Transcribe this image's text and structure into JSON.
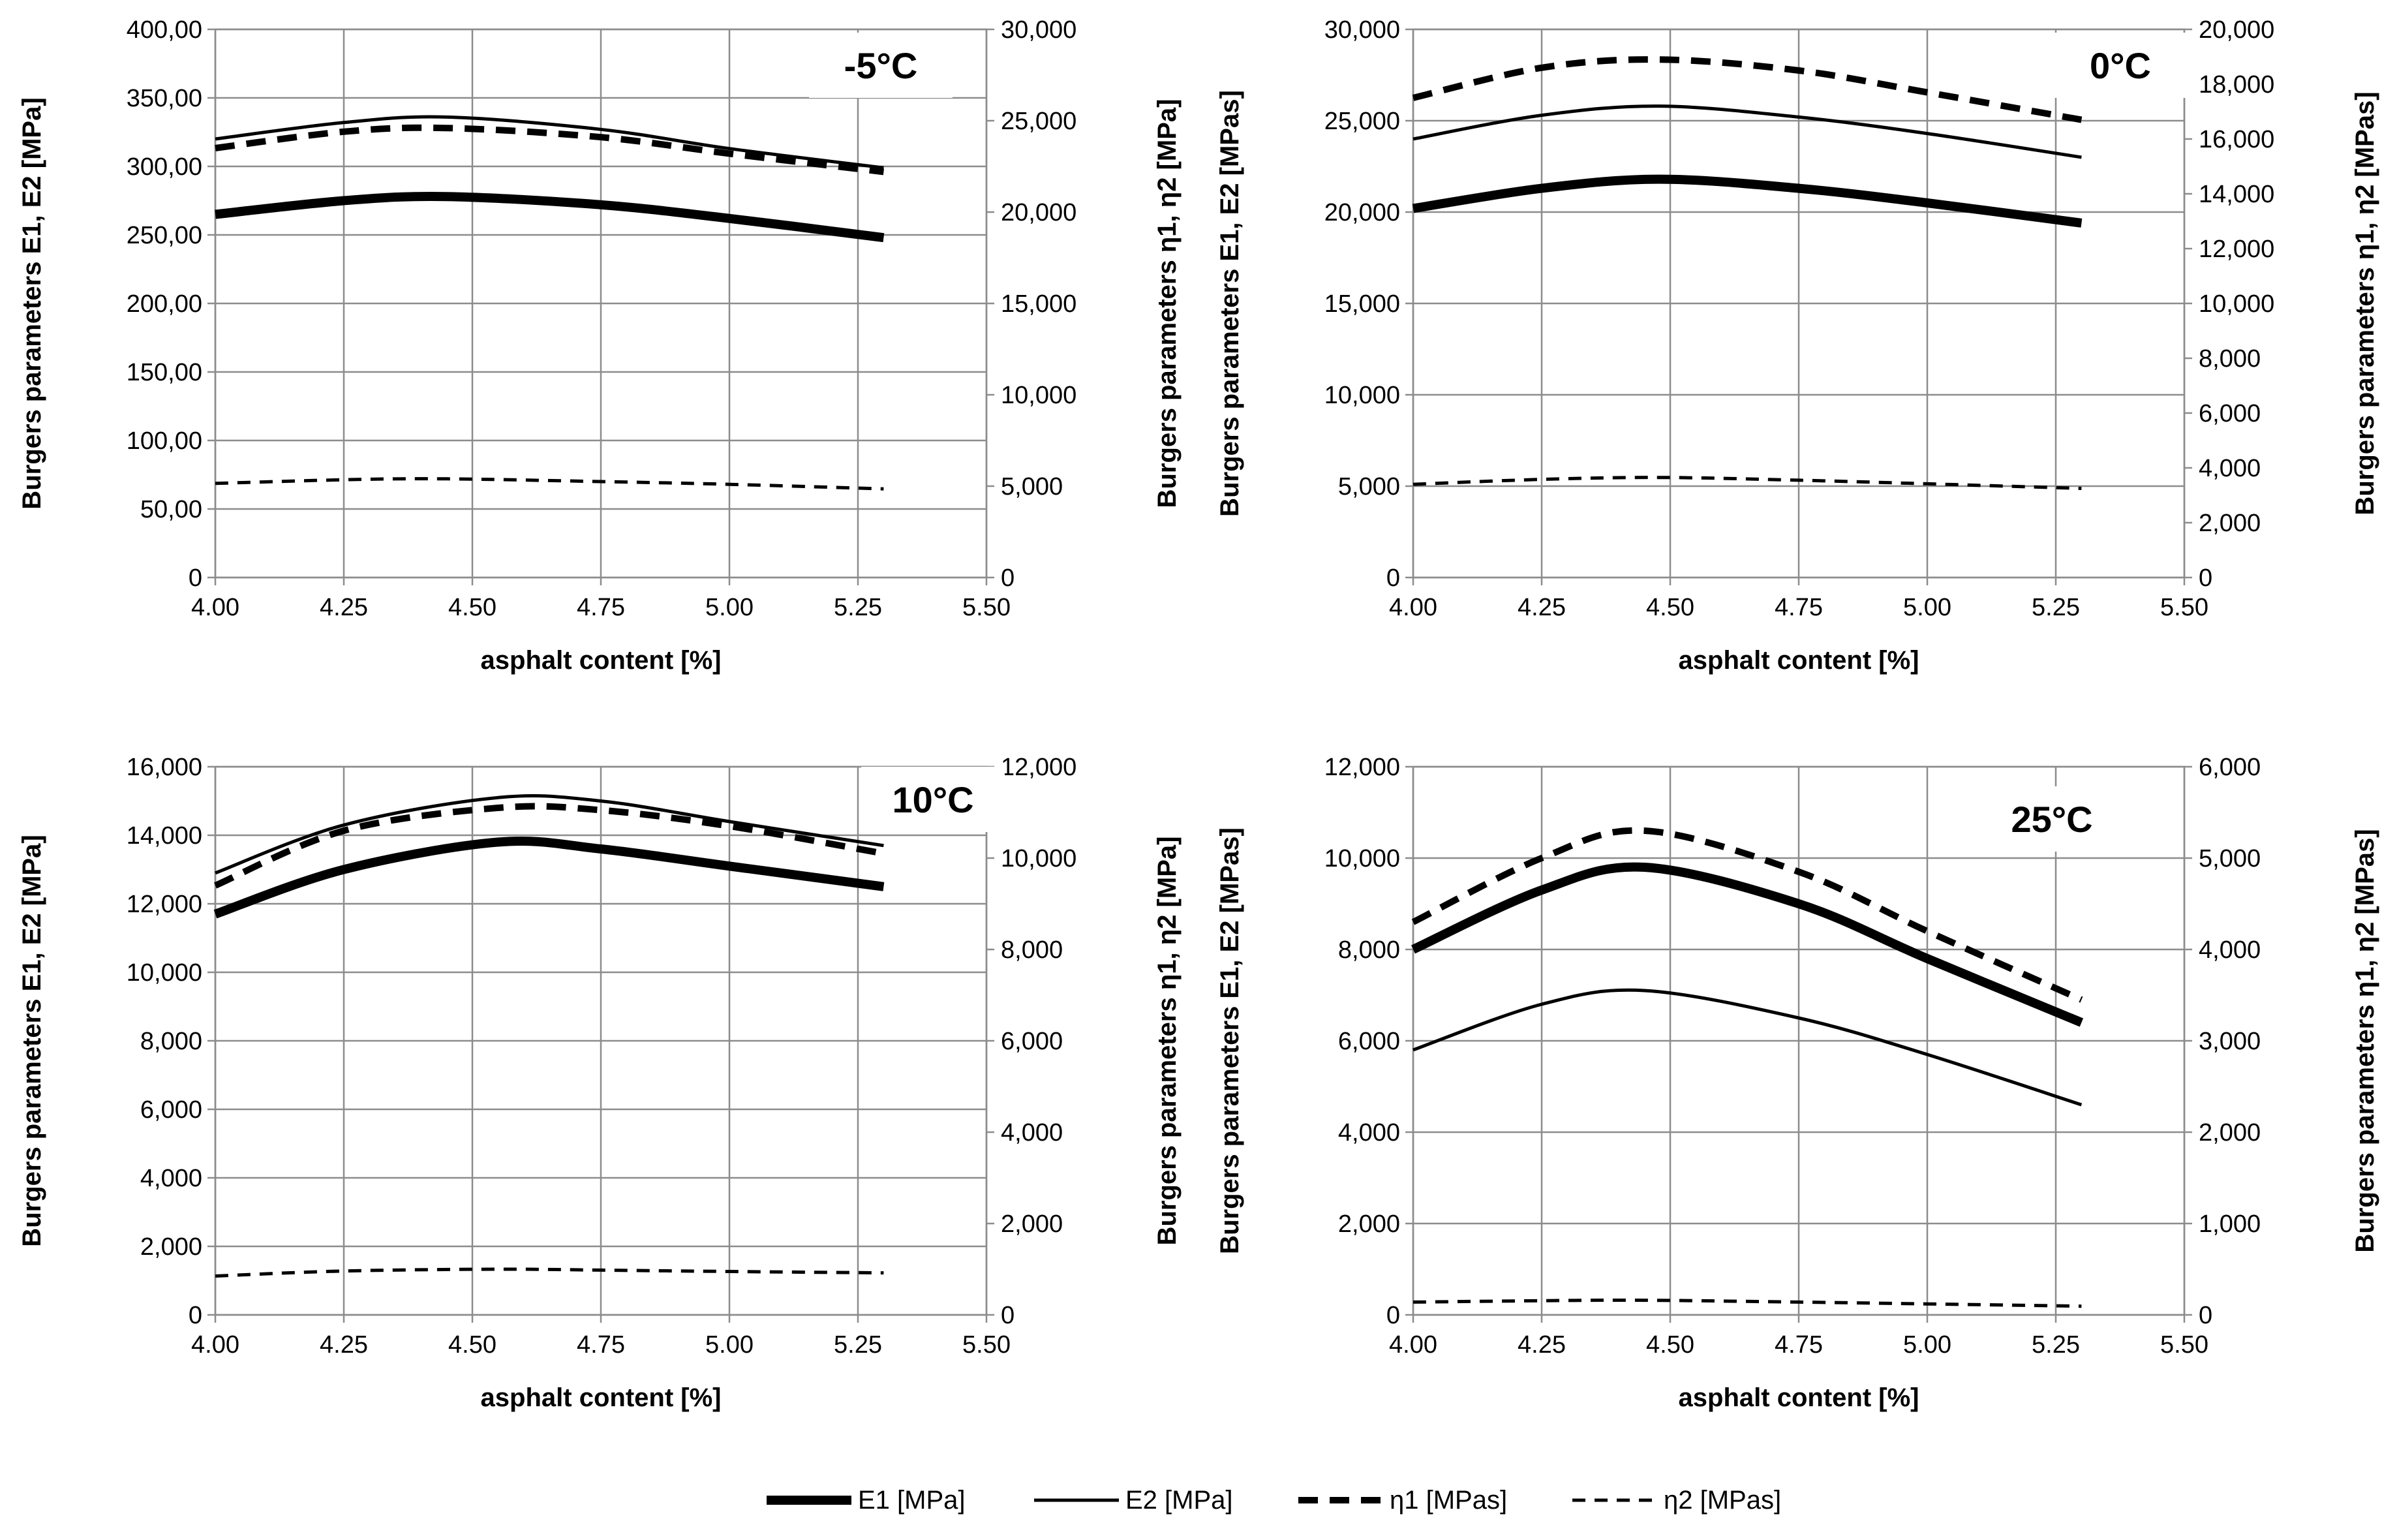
{
  "legend": [
    {
      "key": "E1",
      "label": "E1 [MPa]",
      "style": "thick-solid"
    },
    {
      "key": "E2",
      "label": "E2 [MPa]",
      "style": "thin-solid"
    },
    {
      "key": "eta1",
      "label": "η1 [MPas]",
      "style": "thick-dashed"
    },
    {
      "key": "eta2",
      "label": "η2 [MPas]",
      "style": "thin-dashed"
    }
  ],
  "chart_data": [
    {
      "type": "line",
      "temperature_label": "-5°C",
      "xlabel": "asphalt content [%]",
      "ylabel_left": "Burgers parameters E1, E2 [MPa]",
      "ylabel_right": "Burgers parameters η1, η2 [MPa]",
      "x_ticks": [
        "4.00",
        "4.25",
        "4.50",
        "4.75",
        "5.00",
        "5.25",
        "5.50"
      ],
      "xlim": [
        4.0,
        5.5
      ],
      "y_left_ticks": [
        "0",
        "50,00",
        "100,00",
        "150,00",
        "200,00",
        "250,00",
        "300,00",
        "350,00",
        "400,00"
      ],
      "ylim_left": [
        0,
        400
      ],
      "y_right_ticks": [
        "0",
        "5,000",
        "10,000",
        "15,000",
        "20,000",
        "25,000",
        "30,000"
      ],
      "ylim_right": [
        0,
        30000
      ],
      "x": [
        4.0,
        4.25,
        4.45,
        4.75,
        5.0,
        5.3
      ],
      "series": [
        {
          "name": "E1 [MPa]",
          "axis": "left",
          "values": [
            265,
            275,
            278,
            272,
            262,
            248
          ]
        },
        {
          "name": "E2 [MPa]",
          "axis": "left",
          "values": [
            320,
            332,
            336,
            327,
            313,
            299
          ]
        },
        {
          "name": "η1 [MPas]",
          "axis": "right",
          "values": [
            23500,
            24400,
            24600,
            24100,
            23200,
            22200
          ]
        },
        {
          "name": "η2 [MPas]",
          "axis": "right",
          "values": [
            5150,
            5350,
            5400,
            5250,
            5100,
            4850
          ]
        }
      ]
    },
    {
      "type": "line",
      "temperature_label": "0°C",
      "xlabel": "asphalt content [%]",
      "ylabel_left": "Burgers parameters E1, E2 [MPas]",
      "ylabel_right": "Burgers parameters η1, η2 [MPas]",
      "x_ticks": [
        "4.00",
        "4.25",
        "4.50",
        "4.75",
        "5.00",
        "5.25",
        "5.50"
      ],
      "xlim": [
        4.0,
        5.5
      ],
      "y_left_ticks": [
        "0",
        "5,000",
        "10,000",
        "15,000",
        "20,000",
        "25,000",
        "30,000"
      ],
      "ylim_left": [
        0,
        30000
      ],
      "y_right_ticks": [
        "0",
        "2,000",
        "4,000",
        "6,000",
        "8,000",
        "10,000",
        "12,000",
        "14,000",
        "16,000",
        "18,000",
        "20,000"
      ],
      "ylim_right": [
        0,
        20000
      ],
      "x": [
        4.0,
        4.25,
        4.48,
        4.75,
        5.0,
        5.3
      ],
      "series": [
        {
          "name": "E1 [MPa]",
          "axis": "left",
          "values": [
            20200,
            21300,
            21800,
            21300,
            20500,
            19400
          ]
        },
        {
          "name": "E2 [MPa]",
          "axis": "left",
          "values": [
            24000,
            25300,
            25800,
            25200,
            24300,
            23000
          ]
        },
        {
          "name": "η1 [MPas]",
          "axis": "right",
          "values": [
            17500,
            18600,
            18900,
            18500,
            17700,
            16700
          ]
        },
        {
          "name": "η2 [MPas]",
          "axis": "right",
          "values": [
            3400,
            3580,
            3650,
            3550,
            3420,
            3250
          ]
        }
      ]
    },
    {
      "type": "line",
      "temperature_label": "10°C",
      "xlabel": "asphalt content [%]",
      "ylabel_left": "Burgers parameters E1, E2 [MPa]",
      "ylabel_right": "Burgers parameters η1, η2 [MPa]",
      "x_ticks": [
        "4.00",
        "4.25",
        "4.50",
        "4.75",
        "5.00",
        "5.25",
        "5.50"
      ],
      "xlim": [
        4.0,
        5.5
      ],
      "y_left_ticks": [
        "0",
        "2,000",
        "4,000",
        "6,000",
        "8,000",
        "10,000",
        "12,000",
        "14,000",
        "16,000"
      ],
      "ylim_left": [
        0,
        16000
      ],
      "y_right_ticks": [
        "0",
        "2,000",
        "4,000",
        "6,000",
        "8,000",
        "10,000",
        "12,000"
      ],
      "ylim_right": [
        0,
        12000
      ],
      "x": [
        4.0,
        4.25,
        4.55,
        4.75,
        5.0,
        5.3
      ],
      "series": [
        {
          "name": "E1 [MPa]",
          "axis": "left",
          "values": [
            11700,
            13000,
            13800,
            13600,
            13100,
            12500
          ]
        },
        {
          "name": "E2 [MPa]",
          "axis": "left",
          "values": [
            12900,
            14300,
            15100,
            15000,
            14400,
            13700
          ]
        },
        {
          "name": "η1 [MPas]",
          "axis": "right",
          "values": [
            9400,
            10600,
            11100,
            11050,
            10700,
            10100
          ]
        },
        {
          "name": "η2 [MPas]",
          "axis": "right",
          "values": [
            850,
            960,
            1000,
            980,
            950,
            920
          ]
        }
      ]
    },
    {
      "type": "line",
      "temperature_label": "25°C",
      "xlabel": "asphalt content [%]",
      "ylabel_left": "Burgers parameters E1, E2 [MPas]",
      "ylabel_right": "Burgers parameters η1, η2 [MPas]",
      "x_ticks": [
        "4.00",
        "4.25",
        "4.50",
        "4.75",
        "5.00",
        "5.25",
        "5.50"
      ],
      "xlim": [
        4.0,
        5.5
      ],
      "y_left_ticks": [
        "0",
        "2,000",
        "4,000",
        "6,000",
        "8,000",
        "10,000",
        "12,000"
      ],
      "ylim_left": [
        0,
        12000
      ],
      "y_right_ticks": [
        "0",
        "1,000",
        "2,000",
        "3,000",
        "4,000",
        "5,000",
        "6,000"
      ],
      "ylim_right": [
        0,
        6000
      ],
      "x": [
        4.0,
        4.25,
        4.45,
        4.75,
        5.0,
        5.3
      ],
      "series": [
        {
          "name": "E1 [MPa]",
          "axis": "left",
          "values": [
            8000,
            9300,
            9800,
            9000,
            7800,
            6400
          ]
        },
        {
          "name": "E2 [MPa]",
          "axis": "left",
          "values": [
            5800,
            6800,
            7100,
            6500,
            5700,
            4600
          ]
        },
        {
          "name": "η1 [MPas]",
          "axis": "right",
          "values": [
            4300,
            5000,
            5300,
            4850,
            4200,
            3450
          ]
        },
        {
          "name": "η2 [MPas]",
          "axis": "right",
          "values": [
            140,
            155,
            160,
            140,
            120,
            95
          ]
        }
      ]
    }
  ]
}
